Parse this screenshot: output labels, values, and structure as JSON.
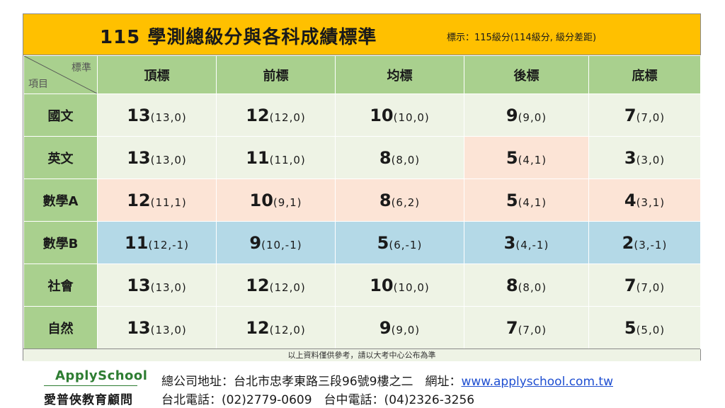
{
  "header": {
    "title": "115  學測總級分與各科成績標準",
    "legend": "標示：115級分(114級分, 級分差距)"
  },
  "corner": {
    "top_label": "標準",
    "bottom_label": "項目"
  },
  "columns": [
    "頂標",
    "前標",
    "均標",
    "後標",
    "底標"
  ],
  "rows": [
    {
      "subject": "國文",
      "cells": [
        {
          "value": "13",
          "detail": "(13,0)"
        },
        {
          "value": "12",
          "detail": "(12,0)"
        },
        {
          "value": "10",
          "detail": "(10,0)"
        },
        {
          "value": "9",
          "detail": "(9,0)"
        },
        {
          "value": "7",
          "detail": "(7,0)"
        }
      ]
    },
    {
      "subject": "英文",
      "cells": [
        {
          "value": "13",
          "detail": "(13,0)"
        },
        {
          "value": "11",
          "detail": "(11,0)"
        },
        {
          "value": "8",
          "detail": "(8,0)"
        },
        {
          "value": "5",
          "detail": "(4,1)"
        },
        {
          "value": "3",
          "detail": "(3,0)"
        }
      ]
    },
    {
      "subject": "數學A",
      "cells": [
        {
          "value": "12",
          "detail": "(11,1)"
        },
        {
          "value": "10",
          "detail": "(9,1)"
        },
        {
          "value": "8",
          "detail": "(6,2)"
        },
        {
          "value": "5",
          "detail": "(4,1)"
        },
        {
          "value": "4",
          "detail": "(3,1)"
        }
      ]
    },
    {
      "subject": "數學B",
      "cells": [
        {
          "value": "11",
          "detail": "(12,-1)"
        },
        {
          "value": "9",
          "detail": "(10,-1)"
        },
        {
          "value": "5",
          "detail": "(6,-1)"
        },
        {
          "value": "3",
          "detail": "(4,-1)"
        },
        {
          "value": "2",
          "detail": "(3,-1)"
        }
      ]
    },
    {
      "subject": "社會",
      "cells": [
        {
          "value": "13",
          "detail": "(13,0)"
        },
        {
          "value": "12",
          "detail": "(12,0)"
        },
        {
          "value": "10",
          "detail": "(10,0)"
        },
        {
          "value": "8",
          "detail": "(8,0)"
        },
        {
          "value": "7",
          "detail": "(7,0)"
        }
      ]
    },
    {
      "subject": "自然",
      "cells": [
        {
          "value": "13",
          "detail": "(13,0)"
        },
        {
          "value": "12",
          "detail": "(12,0)"
        },
        {
          "value": "9",
          "detail": "(9,0)"
        },
        {
          "value": "7",
          "detail": "(7,0)"
        },
        {
          "value": "5",
          "detail": "(5,0)"
        }
      ]
    }
  ],
  "disclaimer": "以上資料僅供參考，請以大考中心公布為準",
  "footer": {
    "brand": "ApplySchool",
    "brand_sub": "愛普俠教育顧問",
    "address_label": "總公司地址：台北市忠孝東路三段96號9樓之二　網址：",
    "website": "www.applyschool.com.tw",
    "phones": "台北電話：(02)2779-0609　台中電話：(04)2326-3256"
  },
  "colors": {
    "title_bar": "#ffc000",
    "header_green": "#a9d08e",
    "cell_green": "#eef3e5",
    "cell_peach": "#fce4d6",
    "cell_blue": "#b4d9e7",
    "brand_green": "#2e7d32",
    "link_blue": "#1f4fd1"
  }
}
